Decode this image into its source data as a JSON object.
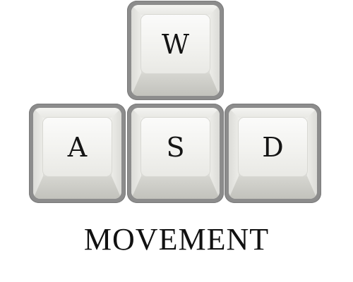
{
  "keys": {
    "w": {
      "label": "W"
    },
    "a": {
      "label": "A"
    },
    "s": {
      "label": "S"
    },
    "d": {
      "label": "D"
    }
  },
  "caption": "MOVEMENT",
  "colors": {
    "key_border": "#8c8c8c",
    "key_face": "#f2f2ef",
    "text": "#111111",
    "background": "#ffffff"
  }
}
